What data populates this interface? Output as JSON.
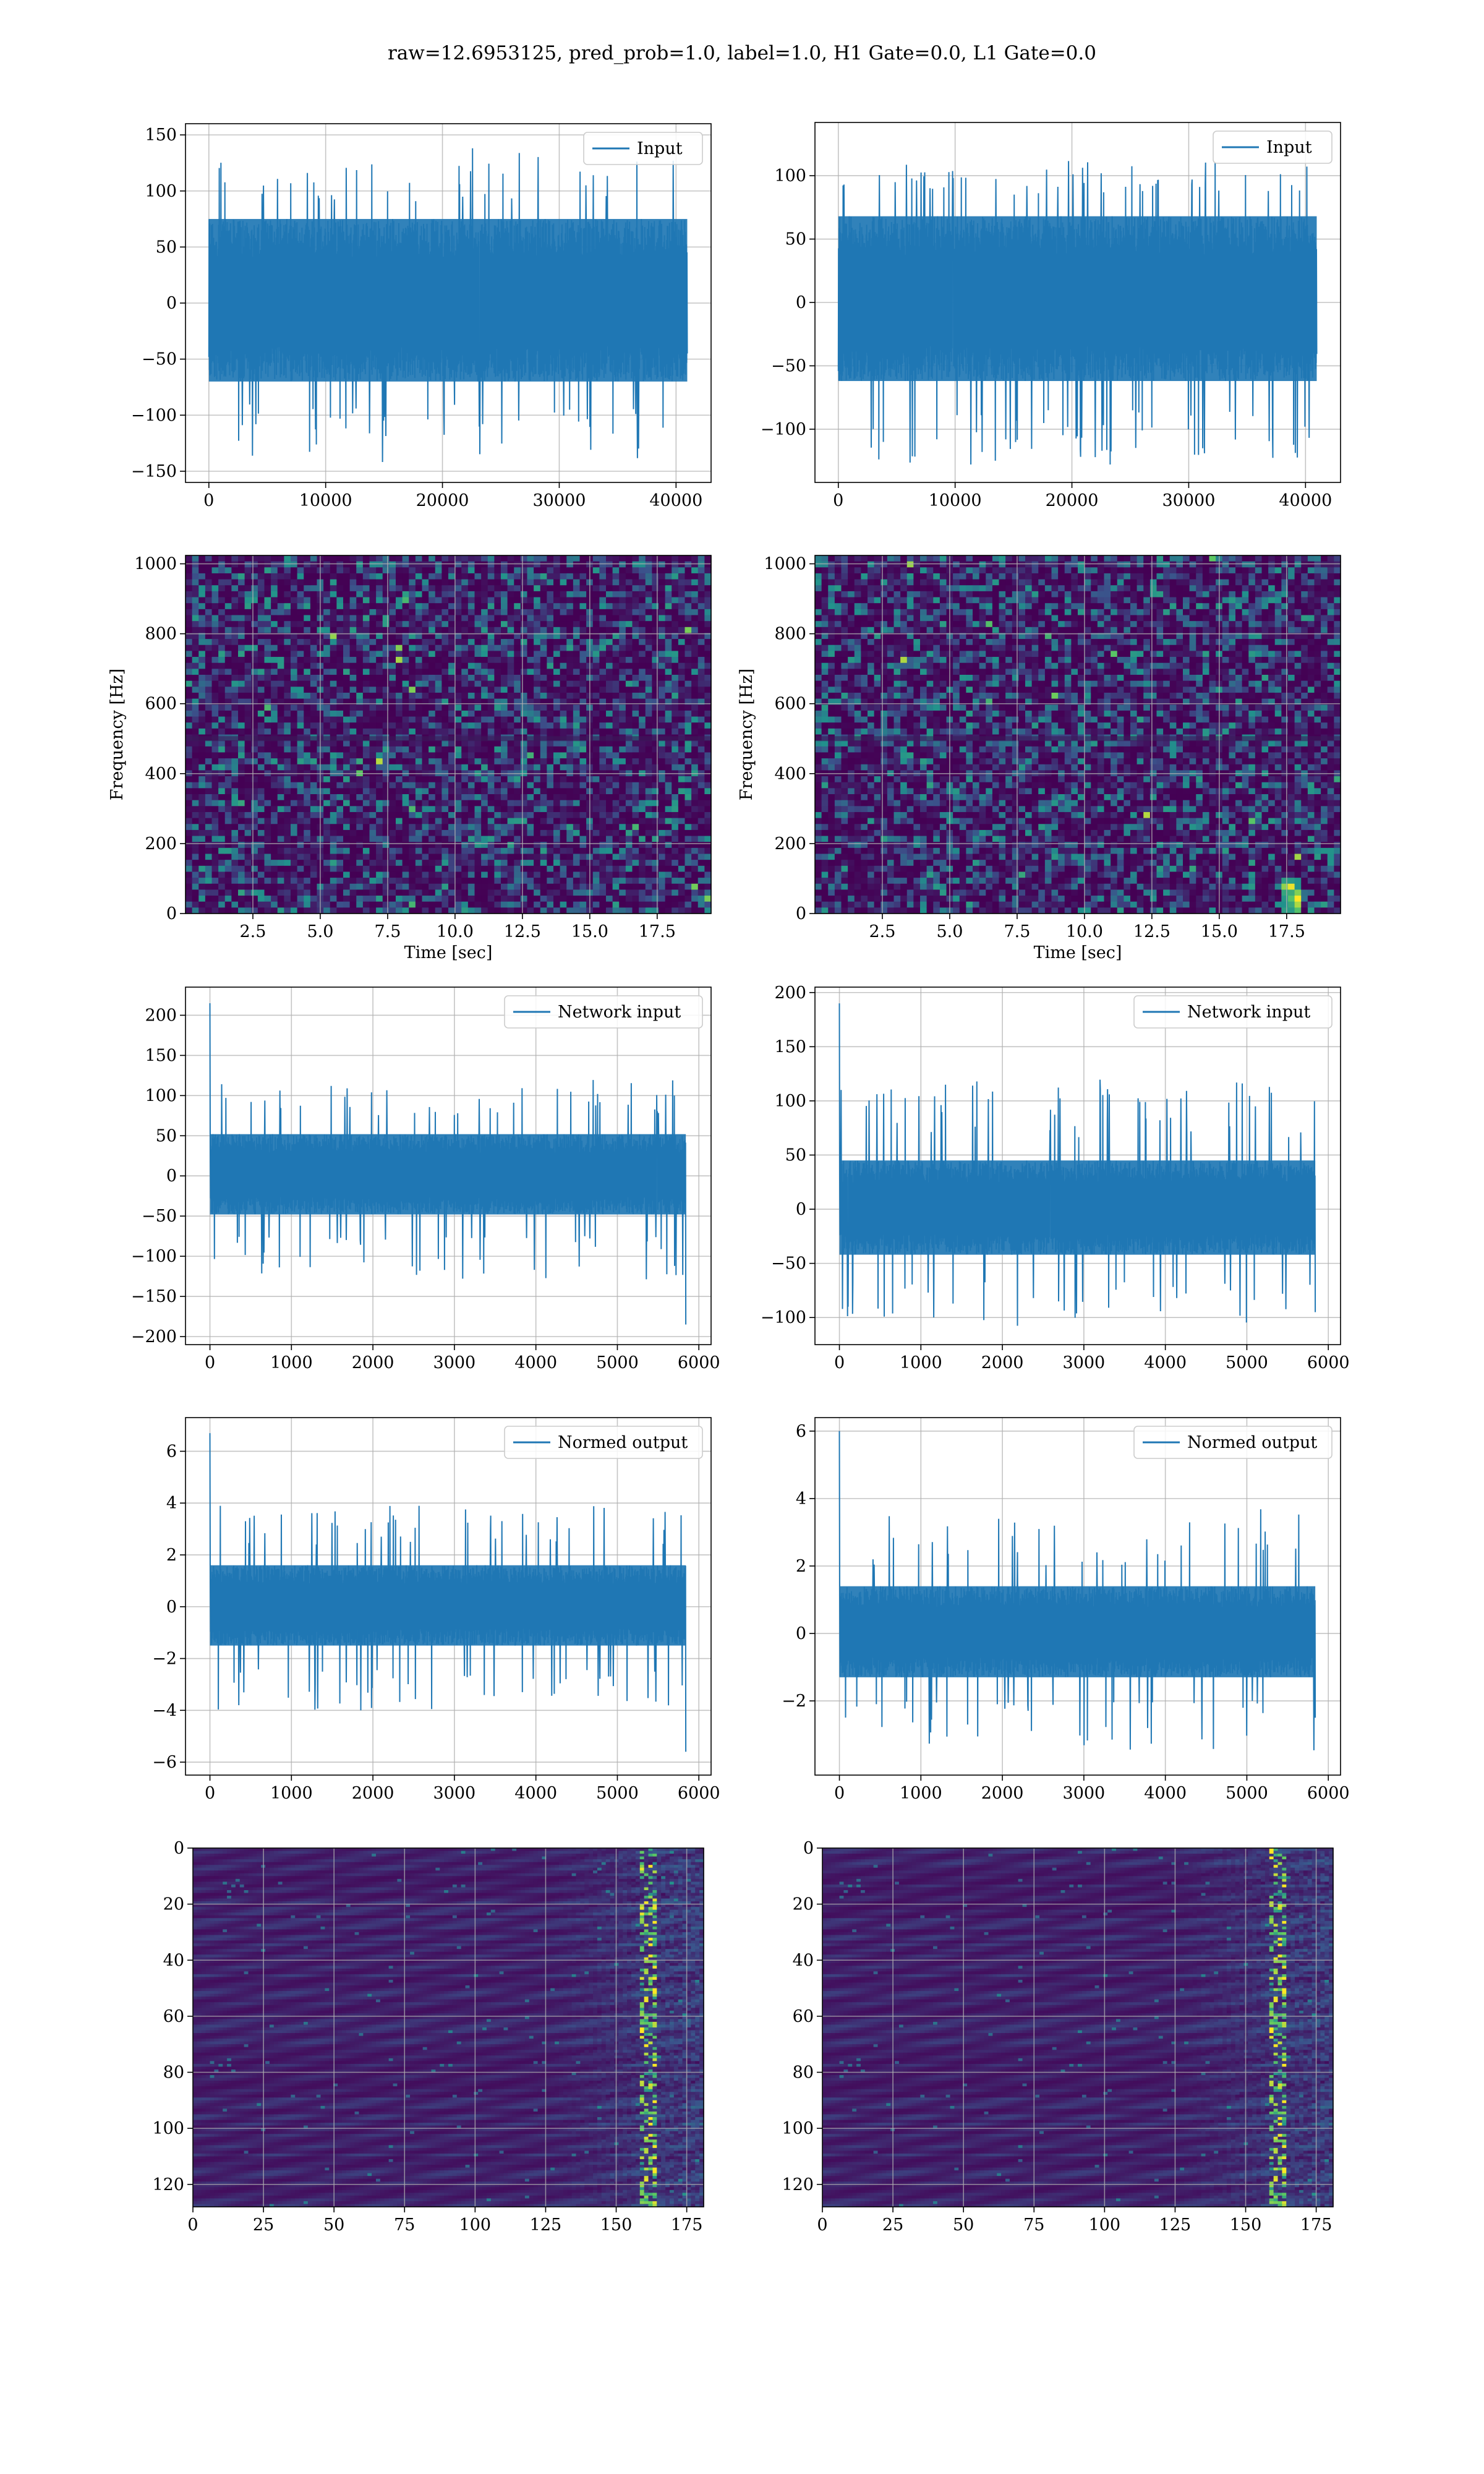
{
  "title": "raw=12.6953125, pred_prob=1.0, label=1.0, H1 Gate=0.0, L1 Gate=0.0",
  "colors": {
    "line": "#1f77b4",
    "grid": "#b0b0b0",
    "viridis_low": "#440154",
    "viridis_mid": "#21918c",
    "viridis_high": "#fde725"
  },
  "chart_data": [
    {
      "id": "input-left",
      "type": "line",
      "xlim": [
        -2000,
        43000
      ],
      "ylim": [
        -160,
        160
      ],
      "xticks": [
        0,
        10000,
        20000,
        30000,
        40000
      ],
      "yticks": [
        -150,
        -100,
        -50,
        0,
        50,
        100,
        150
      ],
      "xlabel": "",
      "ylabel": "",
      "legend": "Input",
      "legend_loc": "upper right",
      "grid": true,
      "series": [
        {
          "name": "Input",
          "x_range": [
            0,
            40960
          ],
          "envelope_min": [
            -145,
            -90
          ],
          "envelope_max": [
            90,
            145
          ],
          "band": [
            -70,
            75
          ]
        }
      ]
    },
    {
      "id": "input-right",
      "type": "line",
      "xlim": [
        -2000,
        43000
      ],
      "ylim": [
        -142,
        142
      ],
      "xticks": [
        0,
        10000,
        20000,
        30000,
        40000
      ],
      "yticks": [
        -100,
        -50,
        0,
        50,
        100
      ],
      "xlabel": "",
      "ylabel": "",
      "legend": "Input",
      "legend_loc": "upper right",
      "grid": true,
      "series": [
        {
          "name": "Input",
          "x_range": [
            0,
            40960
          ],
          "envelope_min": [
            -128,
            -85
          ],
          "envelope_max": [
            85,
            112
          ],
          "band": [
            -62,
            68
          ]
        }
      ]
    },
    {
      "id": "spec-left",
      "type": "heatmap",
      "xlim": [
        0,
        19.5
      ],
      "ylim": [
        0,
        1024
      ],
      "xticks": [
        2.5,
        5.0,
        7.5,
        10.0,
        12.5,
        15.0,
        17.5
      ],
      "yticks": [
        0,
        200,
        400,
        600,
        800,
        1000
      ],
      "xlabel": "Time [sec]",
      "ylabel": "Frequency [Hz]",
      "grid": true
    },
    {
      "id": "spec-right",
      "type": "heatmap",
      "xlim": [
        0,
        19.5
      ],
      "ylim": [
        0,
        1024
      ],
      "xticks": [
        2.5,
        5.0,
        7.5,
        10.0,
        12.5,
        15.0,
        17.5
      ],
      "yticks": [
        0,
        200,
        400,
        600,
        800,
        1000
      ],
      "xlabel": "Time [sec]",
      "ylabel": "Frequency [Hz]",
      "grid": true
    },
    {
      "id": "netin-left",
      "type": "line",
      "xlim": [
        -300,
        6150
      ],
      "ylim": [
        -210,
        235
      ],
      "xticks": [
        0,
        1000,
        2000,
        3000,
        4000,
        5000,
        6000
      ],
      "yticks": [
        -200,
        -150,
        -100,
        -50,
        0,
        50,
        100,
        150,
        200
      ],
      "xlabel": "",
      "ylabel": "",
      "legend": "Network input",
      "legend_loc": "upper right",
      "grid": true,
      "series": [
        {
          "name": "Network input",
          "x_range": [
            0,
            5840
          ],
          "spike_start": 215,
          "spike_end": -185,
          "envelope_min": [
            -130,
            -75
          ],
          "envelope_max": [
            75,
            120
          ],
          "band": [
            -48,
            52
          ]
        }
      ]
    },
    {
      "id": "netin-right",
      "type": "line",
      "xlim": [
        -300,
        6150
      ],
      "ylim": [
        -125,
        205
      ],
      "xticks": [
        0,
        1000,
        2000,
        3000,
        4000,
        5000,
        6000
      ],
      "yticks": [
        -100,
        -50,
        0,
        50,
        100,
        150,
        200
      ],
      "xlabel": "",
      "ylabel": "",
      "legend": "Network input",
      "legend_loc": "upper right",
      "grid": true,
      "series": [
        {
          "name": "Network input",
          "x_range": [
            0,
            5840
          ],
          "spike_start": 190,
          "spike_end": -95,
          "envelope_min": [
            -110,
            -65
          ],
          "envelope_max": [
            65,
            120
          ],
          "band": [
            -42,
            45
          ]
        }
      ]
    },
    {
      "id": "normed-left",
      "type": "line",
      "xlim": [
        -300,
        6150
      ],
      "ylim": [
        -6.5,
        7.3
      ],
      "xticks": [
        0,
        1000,
        2000,
        3000,
        4000,
        5000,
        6000
      ],
      "yticks": [
        -6,
        -4,
        -2,
        0,
        2,
        4,
        6
      ],
      "xlabel": "",
      "ylabel": "",
      "legend": "Normed output",
      "legend_loc": "upper right",
      "grid": true,
      "series": [
        {
          "name": "Normed output",
          "x_range": [
            0,
            5840
          ],
          "spike_start": 6.7,
          "spike_end": -5.6,
          "envelope_min": [
            -4.0,
            -2.4
          ],
          "envelope_max": [
            2.4,
            3.9
          ],
          "band": [
            -1.5,
            1.6
          ]
        }
      ]
    },
    {
      "id": "normed-right",
      "type": "line",
      "xlim": [
        -300,
        6150
      ],
      "ylim": [
        -4.2,
        6.4
      ],
      "xticks": [
        0,
        1000,
        2000,
        3000,
        4000,
        5000,
        6000
      ],
      "yticks": [
        -2,
        0,
        2,
        4,
        6
      ],
      "xlabel": "",
      "ylabel": "",
      "legend": "Normed output",
      "legend_loc": "upper right",
      "grid": true,
      "series": [
        {
          "name": "Normed output",
          "x_range": [
            0,
            5840
          ],
          "spike_start": 6.0,
          "spike_end": -2.5,
          "envelope_min": [
            -3.5,
            -2.0
          ],
          "envelope_max": [
            2.0,
            3.7
          ],
          "band": [
            -1.3,
            1.4
          ]
        }
      ]
    },
    {
      "id": "feat-left",
      "type": "heatmap",
      "xlim": [
        0,
        181
      ],
      "ylim": [
        128,
        0
      ],
      "xticks": [
        0,
        25,
        50,
        75,
        100,
        125,
        150,
        175
      ],
      "yticks": [
        0,
        20,
        40,
        60,
        80,
        100,
        120
      ],
      "xlabel": "",
      "ylabel": "",
      "grid": true,
      "hot_column": 160
    },
    {
      "id": "feat-right",
      "type": "heatmap",
      "xlim": [
        0,
        181
      ],
      "ylim": [
        128,
        0
      ],
      "xticks": [
        0,
        25,
        50,
        75,
        100,
        125,
        150,
        175
      ],
      "yticks": [
        0,
        20,
        40,
        60,
        80,
        100,
        120
      ],
      "xlabel": "",
      "ylabel": "",
      "grid": true,
      "hot_column": 160
    }
  ]
}
